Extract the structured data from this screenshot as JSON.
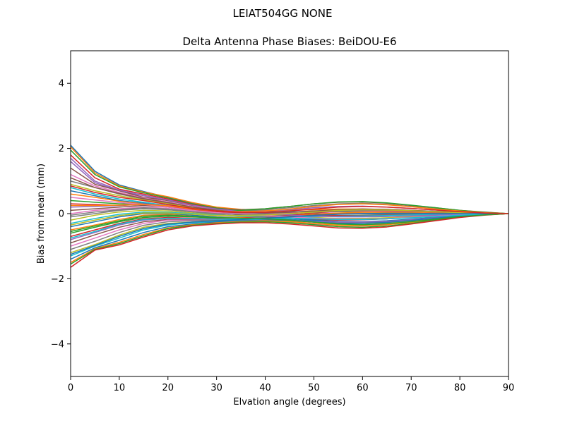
{
  "suptitle": "LEIAT504GG      NONE",
  "chart_data": {
    "type": "line",
    "title": "Delta Antenna Phase Biases: BeiDOU-E6",
    "xlabel": "Elvation angle (degrees)",
    "ylabel": "Bias from mean (mm)",
    "xlim": [
      0,
      90
    ],
    "ylim": [
      -5,
      5
    ],
    "xticks": [
      0,
      10,
      20,
      30,
      40,
      50,
      60,
      70,
      80,
      90
    ],
    "yticks": [
      -4,
      -2,
      0,
      2,
      4
    ],
    "ytick_labels": [
      "−4",
      "−2",
      "0",
      "2",
      "4"
    ],
    "grid": false,
    "legend": "none",
    "x": [
      0,
      5,
      10,
      15,
      20,
      25,
      30,
      35,
      40,
      45,
      50,
      55,
      60,
      65,
      70,
      75,
      80,
      85,
      90
    ],
    "series": [
      {
        "values": [
          2.1,
          1.3,
          0.88,
          0.68,
          0.5,
          0.32,
          0.18,
          0.1,
          0.06,
          0.04,
          0.02,
          0.0,
          -0.02,
          -0.03,
          -0.03,
          -0.02,
          -0.02,
          -0.01,
          0.0
        ]
      },
      {
        "values": [
          2.05,
          1.25,
          0.85,
          0.66,
          0.52,
          0.34,
          0.2,
          0.13,
          0.1,
          0.1,
          0.12,
          0.14,
          0.14,
          0.12,
          0.09,
          0.06,
          0.04,
          0.02,
          0.0
        ]
      },
      {
        "values": [
          1.95,
          1.2,
          0.82,
          0.64,
          0.48,
          0.3,
          0.17,
          0.1,
          0.07,
          0.06,
          0.06,
          0.06,
          0.05,
          0.04,
          0.03,
          0.02,
          0.01,
          0.0,
          0.0
        ]
      },
      {
        "values": [
          1.8,
          1.1,
          0.75,
          0.6,
          0.45,
          0.28,
          0.15,
          0.05,
          -0.05,
          -0.12,
          -0.18,
          -0.2,
          -0.19,
          -0.16,
          -0.12,
          -0.08,
          -0.04,
          -0.02,
          0.0
        ]
      },
      {
        "values": [
          1.6,
          0.95,
          0.7,
          0.55,
          0.4,
          0.25,
          0.14,
          0.08,
          0.05,
          0.05,
          0.06,
          0.08,
          0.08,
          0.07,
          0.06,
          0.04,
          0.02,
          0.01,
          0.0
        ]
      },
      {
        "values": [
          1.4,
          0.9,
          0.7,
          0.5,
          0.4,
          0.25,
          0.15,
          0.12,
          0.15,
          0.22,
          0.3,
          0.35,
          0.36,
          0.32,
          0.25,
          0.18,
          0.1,
          0.05,
          0.0
        ]
      },
      {
        "values": [
          1.2,
          0.85,
          0.65,
          0.48,
          0.36,
          0.22,
          0.13,
          0.08,
          0.05,
          0.04,
          0.03,
          0.02,
          0.01,
          0.0,
          0.0,
          0.0,
          0.0,
          0.0,
          0.0
        ]
      },
      {
        "values": [
          1.0,
          0.8,
          0.6,
          0.45,
          0.32,
          0.2,
          0.12,
          0.1,
          0.12,
          0.18,
          0.25,
          0.3,
          0.32,
          0.28,
          0.22,
          0.15,
          0.08,
          0.04,
          0.0
        ]
      },
      {
        "values": [
          0.9,
          0.7,
          0.55,
          0.42,
          0.3,
          0.18,
          0.1,
          0.04,
          -0.02,
          -0.08,
          -0.12,
          -0.15,
          -0.15,
          -0.13,
          -0.1,
          -0.06,
          -0.03,
          -0.01,
          0.0
        ]
      },
      {
        "values": [
          0.8,
          0.6,
          0.45,
          0.35,
          0.25,
          0.15,
          0.08,
          0.05,
          0.04,
          0.05,
          0.08,
          0.1,
          0.1,
          0.09,
          0.07,
          0.05,
          0.03,
          0.01,
          0.0
        ]
      },
      {
        "values": [
          0.7,
          0.55,
          0.4,
          0.32,
          0.22,
          0.12,
          0.05,
          -0.02,
          -0.08,
          -0.14,
          -0.2,
          -0.24,
          -0.25,
          -0.22,
          -0.17,
          -0.11,
          -0.06,
          -0.02,
          0.0
        ]
      },
      {
        "values": [
          0.6,
          0.5,
          0.38,
          0.3,
          0.2,
          0.1,
          0.04,
          0.0,
          -0.02,
          -0.03,
          -0.03,
          -0.02,
          -0.02,
          -0.01,
          -0.01,
          0.0,
          0.0,
          0.0,
          0.0
        ]
      },
      {
        "values": [
          0.4,
          0.35,
          0.3,
          0.3,
          0.25,
          0.15,
          0.1,
          0.1,
          0.15,
          0.22,
          0.3,
          0.36,
          0.37,
          0.33,
          0.26,
          0.18,
          0.1,
          0.04,
          0.0
        ]
      },
      {
        "values": [
          0.3,
          0.28,
          0.25,
          0.28,
          0.22,
          0.12,
          0.06,
          0.02,
          0.0,
          -0.02,
          -0.05,
          -0.06,
          -0.06,
          -0.05,
          -0.04,
          -0.03,
          -0.02,
          -0.01,
          0.0
        ]
      },
      {
        "values": [
          0.2,
          0.22,
          0.25,
          0.3,
          0.25,
          0.15,
          0.08,
          0.06,
          0.08,
          0.12,
          0.18,
          0.22,
          0.23,
          0.2,
          0.16,
          0.11,
          0.06,
          0.02,
          0.0
        ]
      },
      {
        "values": [
          0.1,
          0.15,
          0.2,
          0.25,
          0.2,
          0.1,
          0.02,
          -0.04,
          -0.08,
          -0.12,
          -0.16,
          -0.18,
          -0.18,
          -0.16,
          -0.12,
          -0.08,
          -0.04,
          -0.02,
          0.0
        ]
      },
      {
        "values": [
          0.0,
          0.1,
          0.15,
          0.2,
          0.16,
          0.08,
          0.02,
          0.0,
          0.0,
          0.02,
          0.05,
          0.07,
          0.08,
          0.07,
          0.05,
          0.04,
          0.02,
          0.01,
          0.0
        ]
      },
      {
        "values": [
          -0.1,
          0.0,
          0.1,
          0.15,
          0.12,
          0.05,
          -0.02,
          -0.08,
          -0.12,
          -0.18,
          -0.24,
          -0.28,
          -0.28,
          -0.25,
          -0.19,
          -0.12,
          -0.06,
          -0.02,
          0.0
        ]
      },
      {
        "values": [
          -0.2,
          -0.05,
          0.05,
          0.1,
          0.08,
          0.02,
          -0.04,
          -0.08,
          -0.1,
          -0.12,
          -0.14,
          -0.15,
          -0.15,
          -0.13,
          -0.1,
          -0.07,
          -0.04,
          -0.02,
          0.0
        ]
      },
      {
        "values": [
          -0.3,
          -0.15,
          -0.02,
          0.05,
          0.04,
          0.0,
          -0.05,
          -0.08,
          -0.08,
          -0.06,
          -0.04,
          -0.02,
          -0.01,
          -0.01,
          0.0,
          0.0,
          0.0,
          0.0,
          0.0
        ]
      },
      {
        "values": [
          -0.4,
          -0.25,
          -0.1,
          0.0,
          0.0,
          -0.05,
          -0.1,
          -0.12,
          -0.14,
          -0.18,
          -0.22,
          -0.25,
          -0.26,
          -0.23,
          -0.18,
          -0.12,
          -0.06,
          -0.02,
          0.0
        ]
      },
      {
        "values": [
          -0.5,
          -0.35,
          -0.18,
          -0.05,
          -0.03,
          -0.08,
          -0.12,
          -0.12,
          -0.1,
          -0.06,
          -0.02,
          0.02,
          0.04,
          0.04,
          0.03,
          0.02,
          0.01,
          0.0,
          0.0
        ]
      },
      {
        "values": [
          -0.6,
          -0.42,
          -0.25,
          -0.12,
          -0.08,
          -0.1,
          -0.14,
          -0.15,
          -0.16,
          -0.2,
          -0.26,
          -0.3,
          -0.3,
          -0.27,
          -0.21,
          -0.14,
          -0.07,
          -0.03,
          0.0
        ]
      },
      {
        "values": [
          -0.7,
          -0.5,
          -0.3,
          -0.16,
          -0.12,
          -0.14,
          -0.16,
          -0.14,
          -0.1,
          -0.05,
          0.02,
          0.08,
          0.1,
          0.09,
          0.07,
          0.05,
          0.03,
          0.01,
          0.0
        ]
      },
      {
        "values": [
          -0.8,
          -0.58,
          -0.35,
          -0.2,
          -0.15,
          -0.16,
          -0.18,
          -0.18,
          -0.18,
          -0.2,
          -0.24,
          -0.26,
          -0.26,
          -0.24,
          -0.19,
          -0.13,
          -0.07,
          -0.03,
          0.0
        ]
      },
      {
        "values": [
          -0.9,
          -0.65,
          -0.42,
          -0.25,
          -0.18,
          -0.18,
          -0.18,
          -0.16,
          -0.12,
          -0.08,
          -0.04,
          -0.01,
          0.0,
          0.0,
          0.0,
          0.0,
          0.0,
          0.0,
          0.0
        ]
      },
      {
        "values": [
          -1.0,
          -0.75,
          -0.5,
          -0.3,
          -0.2,
          -0.2,
          -0.2,
          -0.2,
          -0.22,
          -0.26,
          -0.32,
          -0.36,
          -0.36,
          -0.32,
          -0.25,
          -0.17,
          -0.09,
          -0.03,
          0.0
        ]
      },
      {
        "values": [
          -1.1,
          -0.85,
          -0.58,
          -0.36,
          -0.25,
          -0.22,
          -0.2,
          -0.16,
          -0.1,
          -0.02,
          0.06,
          0.12,
          0.14,
          0.13,
          0.1,
          0.07,
          0.04,
          0.02,
          0.0
        ]
      },
      {
        "values": [
          -1.2,
          -0.95,
          -0.66,
          -0.42,
          -0.3,
          -0.26,
          -0.24,
          -0.22,
          -0.22,
          -0.25,
          -0.3,
          -0.34,
          -0.34,
          -0.3,
          -0.23,
          -0.15,
          -0.08,
          -0.03,
          0.0
        ]
      },
      {
        "values": [
          -1.3,
          -1.0,
          -0.75,
          -0.5,
          -0.35,
          -0.28,
          -0.24,
          -0.2,
          -0.16,
          -0.12,
          -0.1,
          -0.08,
          -0.07,
          -0.06,
          -0.04,
          -0.03,
          -0.02,
          -0.01,
          0.0
        ]
      },
      {
        "values": [
          -1.4,
          -1.05,
          -0.82,
          -0.58,
          -0.4,
          -0.32,
          -0.26,
          -0.22,
          -0.2,
          -0.22,
          -0.26,
          -0.3,
          -0.3,
          -0.27,
          -0.21,
          -0.14,
          -0.07,
          -0.03,
          0.0
        ]
      },
      {
        "values": [
          -1.5,
          -1.08,
          -0.88,
          -0.64,
          -0.44,
          -0.34,
          -0.28,
          -0.24,
          -0.22,
          -0.24,
          -0.3,
          -0.36,
          -0.38,
          -0.34,
          -0.27,
          -0.18,
          -0.1,
          -0.04,
          0.0
        ]
      },
      {
        "values": [
          -1.55,
          -1.1,
          -0.92,
          -0.68,
          -0.46,
          -0.36,
          -0.3,
          -0.26,
          -0.25,
          -0.28,
          -0.34,
          -0.4,
          -0.42,
          -0.38,
          -0.3,
          -0.2,
          -0.11,
          -0.04,
          0.0
        ]
      },
      {
        "values": [
          -1.65,
          -1.12,
          -0.96,
          -0.72,
          -0.5,
          -0.38,
          -0.32,
          -0.28,
          -0.28,
          -0.32,
          -0.38,
          -0.44,
          -0.45,
          -0.41,
          -0.32,
          -0.22,
          -0.12,
          -0.05,
          0.0
        ]
      },
      {
        "values": [
          1.7,
          1.0,
          0.72,
          0.56,
          0.42,
          0.26,
          0.14,
          0.06,
          0.0,
          -0.04,
          -0.08,
          -0.1,
          -0.1,
          -0.09,
          -0.07,
          -0.05,
          -0.03,
          -0.01,
          0.0
        ]
      },
      {
        "values": [
          1.1,
          0.8,
          0.62,
          0.46,
          0.34,
          0.2,
          0.1,
          0.04,
          0.02,
          0.04,
          0.08,
          0.12,
          0.14,
          0.13,
          0.1,
          0.07,
          0.04,
          0.02,
          0.0
        ]
      },
      {
        "values": [
          0.5,
          0.42,
          0.34,
          0.28,
          0.2,
          0.1,
          0.03,
          -0.02,
          -0.06,
          -0.1,
          -0.14,
          -0.16,
          -0.17,
          -0.15,
          -0.12,
          -0.08,
          -0.04,
          -0.02,
          0.0
        ]
      },
      {
        "values": [
          -0.05,
          0.05,
          0.12,
          0.18,
          0.14,
          0.06,
          0.0,
          -0.02,
          -0.02,
          0.0,
          0.04,
          0.08,
          0.1,
          0.1,
          0.08,
          0.05,
          0.03,
          0.01,
          0.0
        ]
      },
      {
        "values": [
          -0.35,
          -0.2,
          -0.06,
          0.02,
          0.02,
          -0.02,
          -0.06,
          -0.06,
          -0.04,
          0.0,
          0.05,
          0.1,
          0.12,
          0.11,
          0.09,
          0.06,
          0.03,
          0.01,
          0.0
        ]
      },
      {
        "values": [
          -0.75,
          -0.55,
          -0.32,
          -0.18,
          -0.14,
          -0.15,
          -0.17,
          -0.16,
          -0.14,
          -0.14,
          -0.16,
          -0.18,
          -0.18,
          -0.16,
          -0.13,
          -0.09,
          -0.05,
          -0.02,
          0.0
        ]
      },
      {
        "values": [
          -1.25,
          -0.98,
          -0.7,
          -0.46,
          -0.32,
          -0.26,
          -0.22,
          -0.18,
          -0.14,
          -0.1,
          -0.06,
          -0.02,
          0.0,
          0.01,
          0.01,
          0.0,
          0.0,
          0.0,
          0.0
        ]
      },
      {
        "values": [
          0.25,
          0.25,
          0.26,
          0.28,
          0.24,
          0.14,
          0.08,
          0.06,
          0.08,
          0.14,
          0.22,
          0.28,
          0.3,
          0.27,
          0.21,
          0.14,
          0.08,
          0.03,
          0.0
        ]
      },
      {
        "values": [
          -0.55,
          -0.38,
          -0.22,
          -0.08,
          -0.05,
          -0.08,
          -0.12,
          -0.14,
          -0.16,
          -0.2,
          -0.26,
          -0.32,
          -0.34,
          -0.31,
          -0.25,
          -0.17,
          -0.09,
          -0.04,
          0.0
        ]
      },
      {
        "values": [
          0.85,
          0.65,
          0.5,
          0.4,
          0.28,
          0.16,
          0.08,
          0.04,
          0.04,
          0.08,
          0.14,
          0.2,
          0.22,
          0.2,
          0.16,
          0.11,
          0.06,
          0.02,
          0.0
        ]
      }
    ],
    "palette": [
      "#1f77b4",
      "#ff7f0e",
      "#2ca02c",
      "#d62728",
      "#9467bd",
      "#8c564b",
      "#e377c2",
      "#7f7f7f",
      "#bcbd22",
      "#17becf"
    ]
  }
}
